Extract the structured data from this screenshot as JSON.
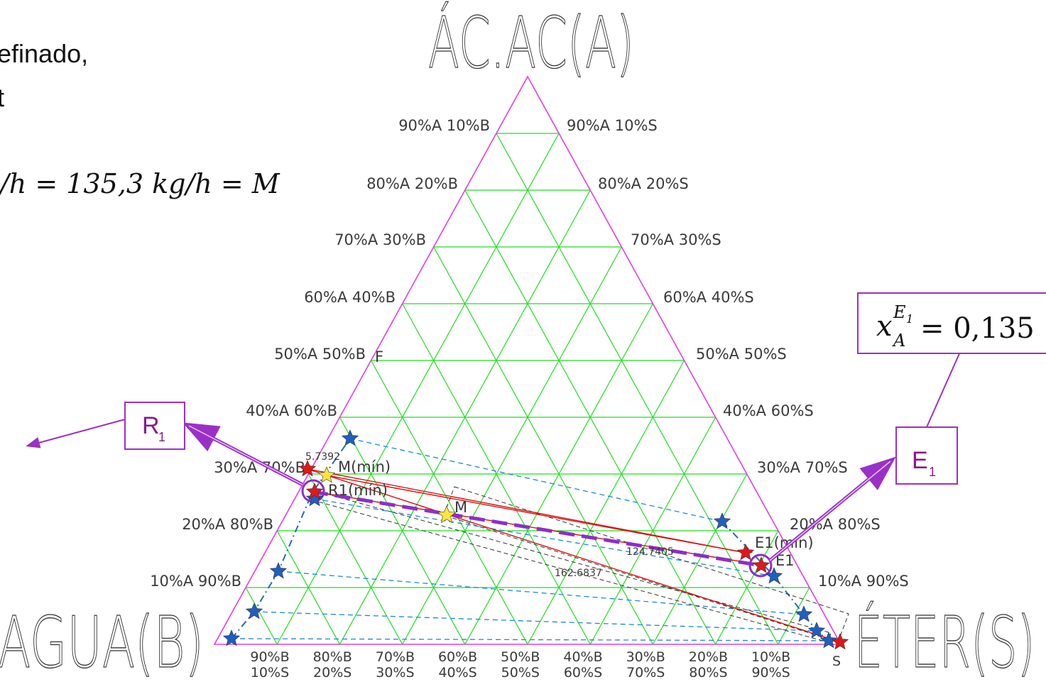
{
  "header_left": {
    "line1": "efinado,",
    "line2": "t",
    "equation": "/h = 135,3 kg/h = M"
  },
  "vertices": {
    "top": "ÁC.AC(A)",
    "left": "AGUA(B)",
    "right": "ÉTER(S)"
  },
  "left_ticks": [
    "90%A 10%B",
    "80%A 20%B",
    "70%A 30%B",
    "60%A 40%B",
    "50%A 50%B",
    "40%A 60%B",
    "30%A 70%B",
    "20%A 80%B",
    "10%A 90%B"
  ],
  "right_ticks": [
    "90%A 10%S",
    "80%A 20%S",
    "70%A 30%S",
    "60%A 40%S",
    "50%A 50%S",
    "40%A 60%S",
    "30%A 70%S",
    "20%A 80%S",
    "10%A 90%S"
  ],
  "bottom_ticks": [
    {
      "b": "90%B",
      "s": "10%S"
    },
    {
      "b": "80%B",
      "s": "20%S"
    },
    {
      "b": "70%B",
      "s": "30%S"
    },
    {
      "b": "60%B",
      "s": "40%S"
    },
    {
      "b": "50%B",
      "s": "50%S"
    },
    {
      "b": "40%B",
      "s": "60%S"
    },
    {
      "b": "30%B",
      "s": "70%S"
    },
    {
      "b": "20%B",
      "s": "80%S"
    },
    {
      "b": "10%B",
      "s": "90%S"
    }
  ],
  "point_labels": {
    "F": "F",
    "M": "M",
    "M_min": "M(mín)",
    "R1_min": "R1(mín)",
    "E1_min": "E1(mín)",
    "E1": "E1",
    "S": "S"
  },
  "dimensions": {
    "d1": "5.7392",
    "d2": "124.7405",
    "d3": "162.6837"
  },
  "callouts": {
    "R1": "R",
    "R1_sub": "1",
    "E1": "E",
    "E1_sub": "1"
  },
  "result_box": {
    "var": "x",
    "sub": "A",
    "sup": "E",
    "sup_sub": "1",
    "value": "= 0,135"
  },
  "colors": {
    "triangle": "#e040e0",
    "grid": "#22dd22",
    "tie_line": "#1a8ad6",
    "operating_line": "#dd1111",
    "callout": "#9b30c8",
    "star_blue": "#1f5fc0",
    "star_red": "#e01818",
    "star_yellow": "#ffe63a"
  }
}
